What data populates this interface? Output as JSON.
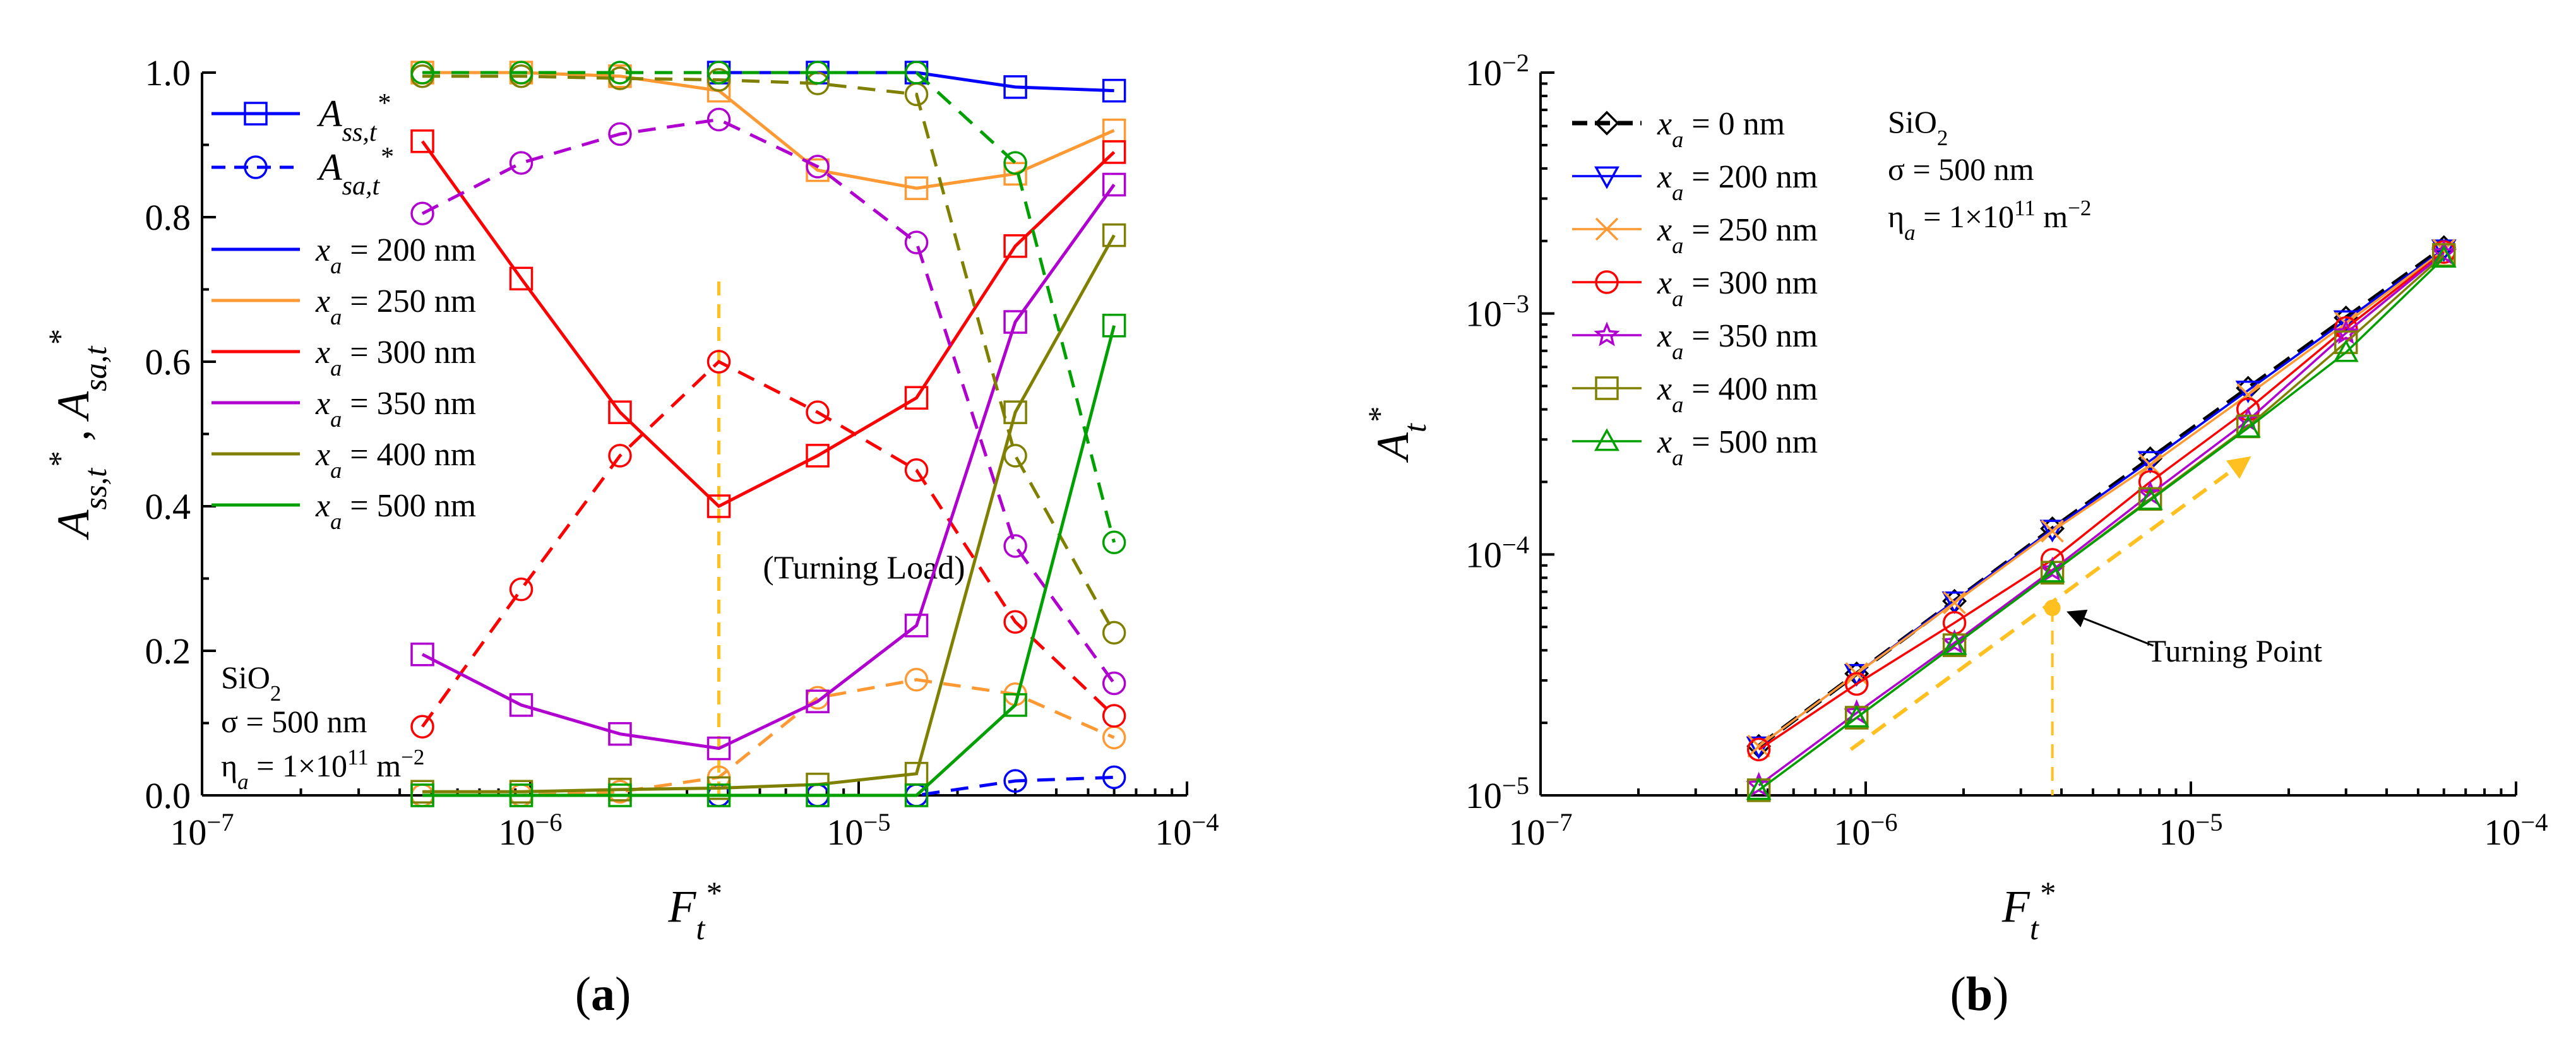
{
  "chart_data": [
    {
      "panel": "(a)",
      "panel_open": "(",
      "panel_letter": "a",
      "panel_close": ")",
      "type": "line",
      "xscale": "log",
      "xlim": [
        1e-07,
        0.0001
      ],
      "ylim": [
        0,
        1
      ],
      "xlabel": "F_t*",
      "ylabel": "A_ss,t* , A_sa,t*",
      "x_tick_labels": [
        "10^-7",
        "10^-6",
        "10^-5",
        "10^-4"
      ],
      "y_tick_labels": [
        "0.0",
        "0.2",
        "0.4",
        "0.6",
        "0.8",
        "1.0"
      ],
      "y_ticks": [
        0,
        0.2,
        0.4,
        0.6,
        0.8,
        1.0
      ],
      "x": [
        4.69e-07,
        9.38e-07,
        1.875e-06,
        3.75e-06,
        7.5e-06,
        1.5e-05,
        3e-05,
        6e-05
      ],
      "legend_styles": [
        {
          "label": "A_ss,t*",
          "style": "solid line, square marker"
        },
        {
          "label": "A_sa,t*",
          "style": "dashed line, circle marker"
        }
      ],
      "series": [
        {
          "name": "x_a = 200 nm",
          "color": "#0000ff",
          "quantity": "A_ss,t*",
          "values": [
            null,
            null,
            null,
            1.0,
            1.0,
            1.0,
            0.98,
            0.975
          ],
          "dashed": false,
          "marker": "square"
        },
        {
          "name": "x_a = 200 nm",
          "color": "#0000ff",
          "quantity": "A_sa,t*",
          "values": [
            null,
            null,
            null,
            0.0,
            0.0,
            0.0,
            0.02,
            0.025
          ],
          "dashed": true,
          "marker": "circle"
        },
        {
          "name": "x_a = 250 nm",
          "color": "#ff9933",
          "quantity": "A_ss,t*",
          "values": [
            1.0,
            1.0,
            0.995,
            0.975,
            0.865,
            0.84,
            0.86,
            0.92
          ],
          "dashed": false,
          "marker": "square"
        },
        {
          "name": "x_a = 250 nm",
          "color": "#ff9933",
          "quantity": "A_sa,t*",
          "values": [
            0.0,
            0.0,
            0.005,
            0.025,
            0.135,
            0.16,
            0.14,
            0.08
          ],
          "dashed": true,
          "marker": "circle"
        },
        {
          "name": "x_a = 300 nm",
          "color": "#ff0000",
          "quantity": "A_ss,t*",
          "values": [
            0.905,
            0.715,
            0.53,
            0.4,
            0.47,
            0.55,
            0.76,
            0.89
          ],
          "dashed": false,
          "marker": "square"
        },
        {
          "name": "x_a = 300 nm",
          "color": "#ff0000",
          "quantity": "A_sa,t*",
          "values": [
            0.095,
            0.285,
            0.47,
            0.6,
            0.53,
            0.45,
            0.24,
            0.11
          ],
          "dashed": true,
          "marker": "circle"
        },
        {
          "name": "x_a = 350 nm",
          "color": "#b000d0",
          "quantity": "A_ss,t*",
          "values": [
            0.195,
            0.125,
            0.085,
            0.065,
            0.13,
            0.235,
            0.655,
            0.845
          ],
          "dashed": false,
          "marker": "square"
        },
        {
          "name": "x_a = 350 nm",
          "color": "#b000d0",
          "quantity": "A_sa,t*",
          "values": [
            0.805,
            0.875,
            0.915,
            0.935,
            0.87,
            0.765,
            0.345,
            0.155
          ],
          "dashed": true,
          "marker": "circle"
        },
        {
          "name": "x_a = 400 nm",
          "color": "#808000",
          "quantity": "A_ss,t*",
          "values": [
            0.005,
            0.005,
            0.008,
            0.01,
            0.015,
            0.03,
            0.53,
            0.775
          ],
          "dashed": false,
          "marker": "square"
        },
        {
          "name": "x_a = 400 nm",
          "color": "#808000",
          "quantity": "A_sa,t*",
          "values": [
            0.995,
            0.995,
            0.992,
            0.99,
            0.985,
            0.97,
            0.47,
            0.225
          ],
          "dashed": true,
          "marker": "circle"
        },
        {
          "name": "x_a = 500 nm",
          "color": "#00a000",
          "quantity": "A_ss,t*",
          "values": [
            0.0,
            0.0,
            0.0,
            0.0,
            0.0,
            0.0,
            0.125,
            0.65
          ],
          "dashed": false,
          "marker": "square"
        },
        {
          "name": "x_a = 500 nm",
          "color": "#00a000",
          "quantity": "A_sa,t*",
          "values": [
            1.0,
            1.0,
            1.0,
            1.0,
            1.0,
            1.0,
            0.875,
            0.35
          ],
          "dashed": true,
          "marker": "circle"
        }
      ],
      "legend_entries": [
        {
          "label": "x_a = 200 nm",
          "color": "#0000ff"
        },
        {
          "label": "x_a = 250 nm",
          "color": "#ff9933"
        },
        {
          "label": "x_a = 300 nm",
          "color": "#ff0000"
        },
        {
          "label": "x_a = 350 nm",
          "color": "#b000d0"
        },
        {
          "label": "x_a = 400 nm",
          "color": "#808000"
        },
        {
          "label": "x_a = 500 nm",
          "color": "#00a000"
        }
      ],
      "annotation": {
        "text": "(Turning Load)",
        "x_data": 3.75e-06,
        "line_from_y": 0.0,
        "line_to_y": 0.72,
        "color": "#ffc020"
      },
      "notes": [
        "SiO2",
        "σ = 500 nm",
        "η_a = 1×10^11 m^−2"
      ]
    },
    {
      "panel": "(b)",
      "panel_open": "(",
      "panel_letter": "b",
      "panel_close": ")",
      "type": "line",
      "xscale": "log",
      "yscale": "log",
      "xlim": [
        1e-07,
        0.0001
      ],
      "ylim": [
        1e-05,
        0.01
      ],
      "xlabel": "F_t*",
      "ylabel": "A_t*",
      "x_tick_labels": [
        "10^-7",
        "10^-6",
        "10^-5",
        "10^-4"
      ],
      "y_tick_labels": [
        "10^-5",
        "10^-4",
        "10^-3",
        "10^-2"
      ],
      "x": [
        4.69e-07,
        9.38e-07,
        1.875e-06,
        3.75e-06,
        7.5e-06,
        1.5e-05,
        3e-05,
        6e-05
      ],
      "series": [
        {
          "name": "x_a = 0 nm",
          "color": "#000000",
          "marker": "diamond",
          "dashed": true,
          "values": [
            1.6e-05,
            3.2e-05,
            6.4e-05,
            0.000128,
            0.00025,
            0.00049,
            0.00096,
            0.00188
          ]
        },
        {
          "name": "x_a = 200 nm",
          "color": "#0000ff",
          "marker": "triangle-down",
          "dashed": false,
          "values": [
            1.6e-05,
            3.2e-05,
            6.4e-05,
            0.000127,
            0.000245,
            0.00048,
            0.00094,
            0.00185
          ]
        },
        {
          "name": "x_a = 250 nm",
          "color": "#ff9933",
          "marker": "x",
          "dashed": false,
          "values": [
            1.6e-05,
            3.2e-05,
            6.3e-05,
            0.000125,
            0.000235,
            0.00046,
            0.00091,
            0.00183
          ]
        },
        {
          "name": "x_a = 300 nm",
          "color": "#ff0000",
          "marker": "circle",
          "dashed": false,
          "values": [
            1.55e-05,
            2.9e-05,
            5.2e-05,
            9.5e-05,
            0.0002,
            0.0004,
            0.00087,
            0.0018
          ]
        },
        {
          "name": "x_a = 350 nm",
          "color": "#b000d0",
          "marker": "star",
          "dashed": false,
          "values": [
            1.1e-05,
            2.2e-05,
            4.3e-05,
            8.6e-05,
            0.000178,
            0.00036,
            0.00083,
            0.00178
          ]
        },
        {
          "name": "x_a = 400 nm",
          "color": "#808000",
          "marker": "square",
          "dashed": false,
          "values": [
            1.05e-05,
            2.1e-05,
            4.2e-05,
            8.4e-05,
            0.00017,
            0.00034,
            0.00076,
            0.00175
          ]
        },
        {
          "name": "x_a = 500 nm",
          "color": "#00a000",
          "marker": "triangle-up",
          "dashed": false,
          "values": [
            1.05e-05,
            2.1e-05,
            4.2e-05,
            8.4e-05,
            0.000168,
            0.000335,
            0.00069,
            0.0017
          ]
        }
      ],
      "annotation": {
        "text": "Turning Point",
        "point": [
          3.75e-06,
          6e-05
        ],
        "arrow_from": [
          9e-07,
          1.55e-05
        ],
        "arrow_to": [
          1.5e-05,
          0.00025
        ],
        "color": "#ffc020"
      },
      "notes": [
        "SiO2",
        "σ = 500 nm",
        "η_a = 1×10^11 m^−2"
      ]
    }
  ]
}
